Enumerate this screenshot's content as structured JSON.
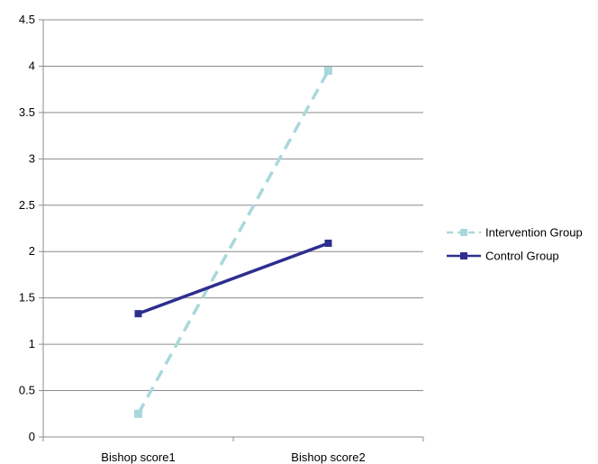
{
  "chart_data": {
    "type": "line",
    "title": "",
    "xlabel": "",
    "ylabel": "",
    "categories": [
      "Bishop score1",
      "Bishop score2"
    ],
    "ylim": [
      0,
      4.5
    ],
    "yticks": [
      "0",
      "0.5",
      "1",
      "1.5",
      "2",
      "2.5",
      "3",
      "3.5",
      "4",
      "4.5"
    ],
    "grid": true,
    "legend_position": "right",
    "series": [
      {
        "name": "Intervention Group",
        "values": [
          0.25,
          3.95
        ],
        "color": "#a8d8dc",
        "line_style": "dashed",
        "marker": "square"
      },
      {
        "name": "Control Group",
        "values": [
          1.33,
          2.09
        ],
        "color": "#2e2e8f",
        "line_style": "solid",
        "marker": "square"
      }
    ]
  }
}
